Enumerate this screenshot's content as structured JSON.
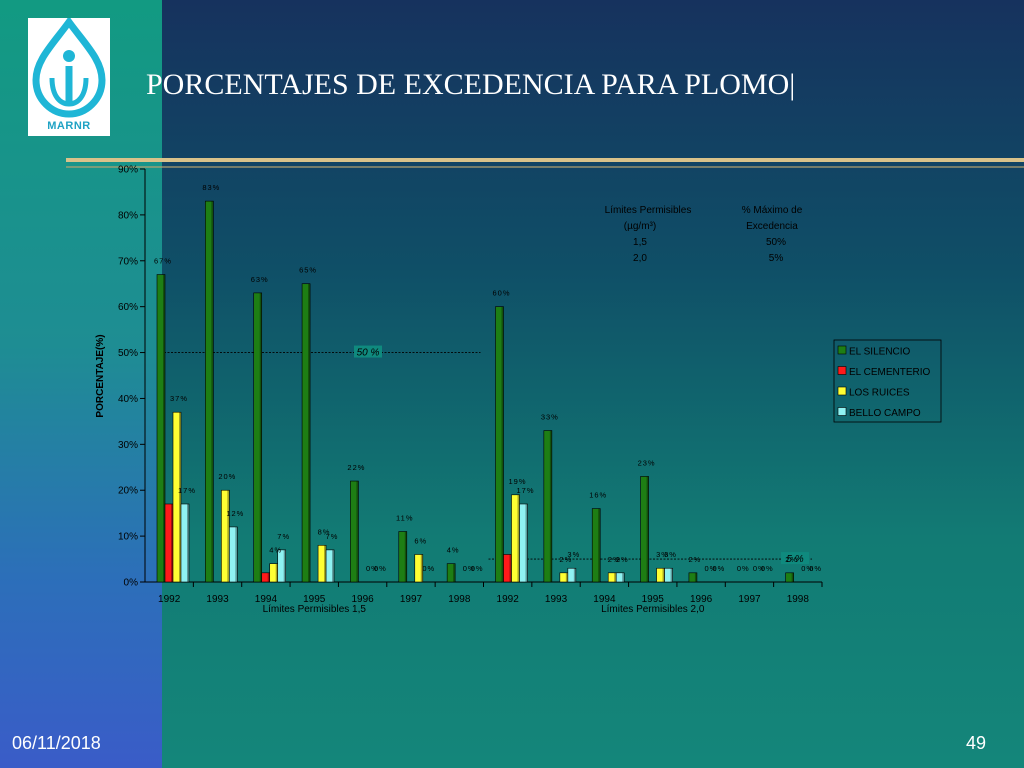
{
  "slide": {
    "title": "PORCENTAJES DE EXCEDENCIA PARA PLOMO|",
    "logo_text": "MARNR",
    "date": "06/11/2018",
    "page_number": "49"
  },
  "colors": {
    "el_silencio": "#1e7e14",
    "el_cementerio": "#ff1a1a",
    "los_ruices": "#ffff33",
    "bello_campo": "#8ff2f2",
    "plot_bg": "#0f8a7e"
  },
  "table": {
    "col1_header": [
      "Límites Permisibles",
      "(µg/m³)"
    ],
    "col2_header": [
      "% Máximo de",
      "Excedencia"
    ],
    "rows": [
      [
        "1,5",
        "50%"
      ],
      [
        "2,0",
        "5%"
      ]
    ]
  },
  "chart_data": {
    "type": "bar",
    "ylabel": "PORCENTAJE(%)",
    "ylim": [
      0,
      90
    ],
    "yticks": [
      "0%",
      "10%",
      "20%",
      "30%",
      "40%",
      "50%",
      "60%",
      "70%",
      "80%",
      "90%"
    ],
    "categories": [
      "1992",
      "1993",
      "1994",
      "1995",
      "1996",
      "1997",
      "1998",
      "1992",
      "1993",
      "1994",
      "1995",
      "1996",
      "1997",
      "1998"
    ],
    "group_labels": [
      "Límites Permisibles 1,5",
      "Límites Permisibles 2,0"
    ],
    "series": [
      {
        "name": "EL SILENCIO",
        "values": [
          67,
          83,
          63,
          65,
          22,
          11,
          4,
          60,
          33,
          16,
          23,
          2,
          0,
          2
        ],
        "labels": [
          "67%",
          "83%",
          "63%",
          "65%",
          "22%",
          "11%",
          "4%",
          "60%",
          "33%",
          "16%",
          "23%",
          "2%",
          "0%",
          "2%"
        ]
      },
      {
        "name": "EL CEMENTERIO",
        "values": [
          17,
          0,
          2,
          0,
          0,
          0,
          0,
          6,
          0,
          0,
          0,
          0,
          0,
          0
        ],
        "labels": [
          "",
          "",
          "",
          "",
          "",
          "",
          "",
          "",
          "",
          "",
          "",
          "",
          "",
          ""
        ]
      },
      {
        "name": "LOS RUICES",
        "values": [
          37,
          20,
          4,
          8,
          0,
          6,
          0,
          19,
          2,
          2,
          3,
          0,
          0,
          0
        ],
        "labels": [
          "37%",
          "20%",
          "4%",
          "8%",
          "0%",
          "6%",
          "0%",
          "19%",
          "2%",
          "2%",
          "3%",
          "0%",
          "0%",
          "0%"
        ]
      },
      {
        "name": "BELLO CAMPO",
        "values": [
          17,
          12,
          7,
          7,
          0,
          0,
          0,
          17,
          3,
          2,
          3,
          0,
          0,
          0
        ],
        "labels": [
          "17%",
          "12%",
          "7%",
          "7%",
          "0%",
          "0%",
          "0%",
          "17%",
          "3%",
          "2%",
          "3%",
          "0%",
          "0%",
          "0%"
        ]
      }
    ],
    "reference_lines": [
      {
        "value": 50,
        "label": "50 %",
        "categories": "1992-1998 (1,5)"
      },
      {
        "value": 5,
        "label": "5 %",
        "categories": "1992-1998 (2,0)"
      }
    ],
    "legend_position": "right"
  }
}
